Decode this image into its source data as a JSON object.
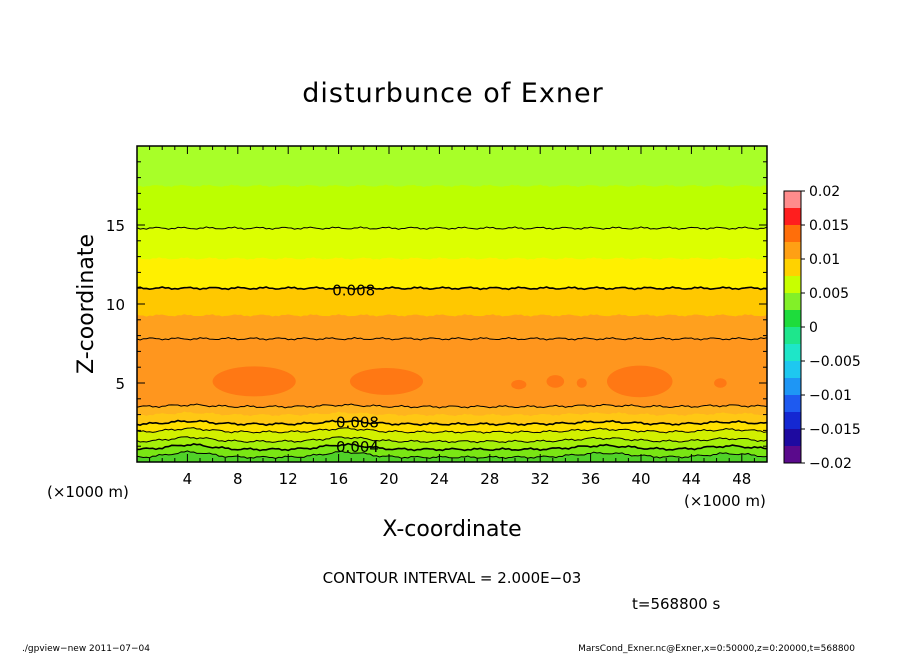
{
  "chart_data": {
    "type": "heatmap",
    "title": "disturbunce of Exner",
    "xlabel": "X-coordinate",
    "ylabel": "Z-coordinate",
    "x_unit_left": "(×1000 m)",
    "x_unit_right": "(×1000 m)",
    "xlim": [
      0,
      50
    ],
    "ylim": [
      0,
      20
    ],
    "x_ticks": [
      {
        "v": 4,
        "label": "4"
      },
      {
        "v": 8,
        "label": "8"
      },
      {
        "v": 12,
        "label": "12"
      },
      {
        "v": 16,
        "label": "16"
      },
      {
        "v": 20,
        "label": "20"
      },
      {
        "v": 24,
        "label": "24"
      },
      {
        "v": 28,
        "label": "28"
      },
      {
        "v": 32,
        "label": "32"
      },
      {
        "v": 36,
        "label": "36"
      },
      {
        "v": 40,
        "label": "40"
      },
      {
        "v": 44,
        "label": "44"
      },
      {
        "v": 48,
        "label": "48"
      }
    ],
    "y_ticks": [
      {
        "v": 5,
        "label": "5"
      },
      {
        "v": 10,
        "label": "10"
      },
      {
        "v": 15,
        "label": "15"
      }
    ],
    "color_range": [
      -0.02,
      0.02
    ],
    "colorbar": {
      "ticks": [
        {
          "v": 0.02,
          "label": "0.02"
        },
        {
          "v": 0.015,
          "label": "0.015"
        },
        {
          "v": 0.01,
          "label": "0.01"
        },
        {
          "v": 0.005,
          "label": "0.005"
        },
        {
          "v": 0,
          "label": "0"
        },
        {
          "v": -0.005,
          "label": "−0.005"
        },
        {
          "v": -0.01,
          "label": "−0.01"
        },
        {
          "v": -0.015,
          "label": "−0.015"
        },
        {
          "v": -0.02,
          "label": "−0.02"
        }
      ],
      "levels": [
        {
          "lo": -0.02,
          "hi": -0.0175,
          "color": "#5a0a8c"
        },
        {
          "lo": -0.0175,
          "hi": -0.015,
          "color": "#1e0aa0"
        },
        {
          "lo": -0.015,
          "hi": -0.0125,
          "color": "#1428d2"
        },
        {
          "lo": -0.0125,
          "hi": -0.01,
          "color": "#1e5af0"
        },
        {
          "lo": -0.01,
          "hi": -0.0075,
          "color": "#1e96f5"
        },
        {
          "lo": -0.0075,
          "hi": -0.005,
          "color": "#1ec8f0"
        },
        {
          "lo": -0.005,
          "hi": -0.0025,
          "color": "#1ee6c8"
        },
        {
          "lo": -0.0025,
          "hi": 0,
          "color": "#1ee68c"
        },
        {
          "lo": 0,
          "hi": 0.0025,
          "color": "#1edc3c"
        },
        {
          "lo": 0.0025,
          "hi": 0.005,
          "color": "#82f028"
        },
        {
          "lo": 0.005,
          "hi": 0.0075,
          "color": "#c8ff00"
        },
        {
          "lo": 0.0075,
          "hi": 0.01,
          "color": "#ffd200"
        },
        {
          "lo": 0.01,
          "hi": 0.0125,
          "color": "#ffa014"
        },
        {
          "lo": 0.0125,
          "hi": 0.015,
          "color": "#ff6e0a"
        },
        {
          "lo": 0.015,
          "hi": 0.0175,
          "color": "#ff1e1e"
        },
        {
          "lo": 0.0175,
          "hi": 0.02,
          "color": "#ff8c8c"
        }
      ]
    },
    "bands": [
      {
        "z0": 0,
        "z1": 0.3,
        "color": "#50d228"
      },
      {
        "z0": 0.3,
        "z1": 0.8,
        "color": "#7ae614"
      },
      {
        "z0": 0.8,
        "z1": 1.3,
        "color": "#a5f00a"
      },
      {
        "z0": 1.3,
        "z1": 1.9,
        "color": "#d2f000"
      },
      {
        "z0": 1.9,
        "z1": 2.4,
        "color": "#ffe100"
      },
      {
        "z0": 2.4,
        "z1": 3.0,
        "color": "#ffc814"
      },
      {
        "z0": 3.0,
        "z1": 3.5,
        "color": "#ffb41e"
      },
      {
        "z0": 3.5,
        "z1": 7.8,
        "color": "#ff961e"
      },
      {
        "z0": 7.8,
        "z1": 9.3,
        "color": "#ffa01e"
      },
      {
        "z0": 9.3,
        "z1": 11.0,
        "color": "#ffc800"
      },
      {
        "z0": 11.0,
        "z1": 12.9,
        "color": "#fff000"
      },
      {
        "z0": 12.9,
        "z1": 14.8,
        "color": "#dcff00"
      },
      {
        "z0": 14.8,
        "z1": 17.5,
        "color": "#bcff00"
      },
      {
        "z0": 17.5,
        "z1": 20.0,
        "color": "#a8ff28"
      }
    ],
    "contours": [
      {
        "z": 14.8,
        "width": 1
      },
      {
        "z": 11.0,
        "width": 1.6
      },
      {
        "z": 7.8,
        "width": 1
      },
      {
        "z": 3.5,
        "width": 1
      },
      {
        "z": 2.4,
        "width": 1.6
      },
      {
        "z": 1.9,
        "width": 1
      },
      {
        "z": 1.3,
        "width": 1
      },
      {
        "z": 0.8,
        "width": 1.6
      },
      {
        "z": 0.3,
        "width": 1
      }
    ],
    "contour_labels": [
      {
        "x": 17.2,
        "z": 11.0,
        "text": "0.008"
      },
      {
        "x": 17.5,
        "z": 2.4,
        "text": "0.008"
      },
      {
        "x": 17.5,
        "z": 0.8,
        "text": "0.004"
      }
    ],
    "max_patches": [
      {
        "cx": 9.3,
        "cz": 5.1,
        "rx": 3.3,
        "rz": 0.95,
        "color": "#ff7814"
      },
      {
        "cx": 19.8,
        "cz": 5.1,
        "rx": 2.9,
        "rz": 0.85,
        "color": "#ff7814"
      },
      {
        "cx": 39.9,
        "cz": 5.1,
        "rx": 2.6,
        "rz": 1.0,
        "color": "#ff7814"
      },
      {
        "cx": 30.3,
        "cz": 4.9,
        "rx": 0.6,
        "rz": 0.3,
        "color": "#ff7814"
      },
      {
        "cx": 33.2,
        "cz": 5.1,
        "rx": 0.7,
        "rz": 0.4,
        "color": "#ff7814"
      },
      {
        "cx": 35.3,
        "cz": 5.0,
        "rx": 0.4,
        "rz": 0.3,
        "color": "#ff7814"
      },
      {
        "cx": 46.3,
        "cz": 5.0,
        "rx": 0.5,
        "rz": 0.3,
        "color": "#ff7814"
      }
    ]
  },
  "contour_interval": "CONTOUR INTERVAL = 2.000E−03",
  "time_label": "t=568800 s",
  "footer_left": "./gpview−new  2011−07−04",
  "footer_right": "MarsCond_Exner.nc@Exner,x=0:50000,z=0:20000,t=568800"
}
